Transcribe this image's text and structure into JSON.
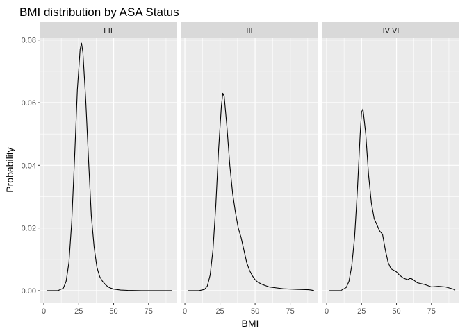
{
  "chart_data": {
    "type": "line",
    "title": "BMI distribution by ASA Status",
    "xlabel": "BMI",
    "ylabel": "Probability",
    "xlim": [
      -3,
      95
    ],
    "ylim": [
      -0.004,
      0.0806
    ],
    "x_ticks": [
      0,
      25,
      50,
      75
    ],
    "y_ticks": [
      0.0,
      0.02,
      0.04,
      0.06,
      0.08
    ],
    "y_tick_labels": [
      "0.00",
      "0.02",
      "0.04",
      "0.06",
      "0.08"
    ],
    "grid": true,
    "legend": "none",
    "line_color": "#000000",
    "panel_background": "#ebebeb",
    "strip_background": "#d9d9d9",
    "facets": [
      {
        "strip": "I-II",
        "x": [
          2,
          10,
          14,
          16,
          18,
          20,
          22,
          24,
          26,
          27,
          28,
          30,
          32,
          34,
          36,
          38,
          40,
          42,
          44,
          46,
          48,
          50,
          55,
          60,
          70,
          80,
          92
        ],
        "y": [
          0.0,
          0.0,
          0.0008,
          0.003,
          0.009,
          0.022,
          0.042,
          0.064,
          0.077,
          0.079,
          0.076,
          0.061,
          0.042,
          0.024,
          0.014,
          0.0075,
          0.0045,
          0.003,
          0.002,
          0.0012,
          0.0008,
          0.0005,
          0.0002,
          0.0001,
          0.0,
          0.0,
          0.0
        ]
      },
      {
        "strip": "III",
        "x": [
          2,
          10,
          14,
          16,
          18,
          20,
          22,
          24,
          26,
          27,
          28,
          30,
          32,
          34,
          36,
          38,
          40,
          42,
          44,
          46,
          48,
          50,
          52,
          55,
          60,
          65,
          70,
          80,
          88,
          90,
          92
        ],
        "y": [
          0.0,
          0.0,
          0.0004,
          0.0015,
          0.005,
          0.013,
          0.027,
          0.045,
          0.059,
          0.063,
          0.062,
          0.052,
          0.04,
          0.031,
          0.025,
          0.02,
          0.017,
          0.013,
          0.009,
          0.0065,
          0.0048,
          0.0035,
          0.0027,
          0.002,
          0.0012,
          0.0009,
          0.0006,
          0.0004,
          0.0003,
          0.0002,
          0.0
        ]
      },
      {
        "strip": "IV-VI",
        "x": [
          2,
          10,
          14,
          16,
          18,
          20,
          22,
          24,
          25,
          26,
          28,
          30,
          32,
          34,
          36,
          38,
          40,
          42,
          44,
          46,
          48,
          50,
          52,
          55,
          58,
          60,
          62,
          65,
          70,
          75,
          80,
          85,
          90,
          92
        ],
        "y": [
          0.0,
          0.0,
          0.001,
          0.003,
          0.008,
          0.017,
          0.032,
          0.05,
          0.057,
          0.058,
          0.05,
          0.037,
          0.028,
          0.023,
          0.021,
          0.019,
          0.018,
          0.013,
          0.009,
          0.007,
          0.0065,
          0.006,
          0.005,
          0.004,
          0.0035,
          0.004,
          0.0035,
          0.0025,
          0.002,
          0.0012,
          0.0014,
          0.0012,
          0.0006,
          0.0002
        ]
      }
    ]
  }
}
